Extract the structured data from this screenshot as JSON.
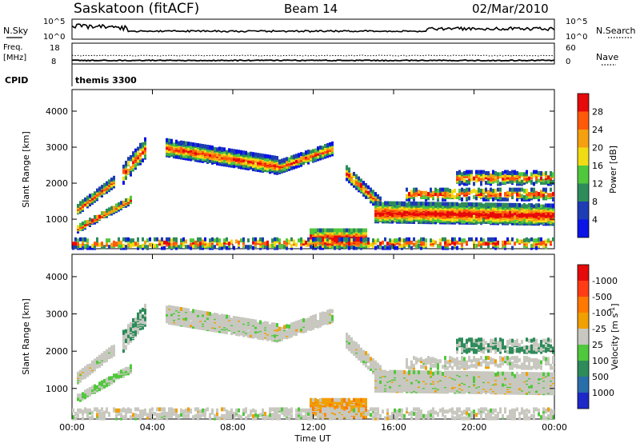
{
  "header": {
    "station": "Saskatoon (fitACF)",
    "beam": "Beam 14",
    "date": "02/Mar/2010"
  },
  "noise_panel": {
    "left_label": "N.Sky",
    "right_label": "N.Search",
    "top_tick": "10^5",
    "bottom_tick": "10^0",
    "right_top_tick": "10^5",
    "right_bottom_tick": "10^0"
  },
  "freq_panel": {
    "left_label_line1": "Freq.",
    "left_label_line2": "[MHz]",
    "top_tick": "18",
    "bottom_tick": "8",
    "right_label": "Nave",
    "right_top_tick": "60",
    "right_bottom_tick": "0"
  },
  "cpid_panel": {
    "label": "CPID",
    "mode": "themis 3300"
  },
  "chart_data": [
    {
      "type": "heatmap",
      "quantity": "Power",
      "ylabel": "Slant Range [km]",
      "xlabel": "Time UT",
      "ylim": [
        180,
        4600
      ],
      "yticks": [
        "1000",
        "2000",
        "3000",
        "4000"
      ],
      "xticks": [
        "00:00",
        "04:00",
        "08:00",
        "12:00",
        "16:00",
        "20:00",
        "00:00"
      ],
      "colorbar": {
        "label": "Power [dB]",
        "ticks": [
          "4",
          "8",
          "12",
          "16",
          "20",
          "24",
          "28"
        ],
        "colors": [
          "#0a14e6",
          "#1e3cb4",
          "#2d8c5a",
          "#50c83c",
          "#f0dc14",
          "#f5a00f",
          "#ff5a0a",
          "#e60a0a"
        ]
      }
    },
    {
      "type": "heatmap",
      "quantity": "Velocity",
      "ylabel": "Slant Range [km]",
      "xlabel": "Time UT",
      "ylim": [
        180,
        4600
      ],
      "yticks": [
        "1000",
        "2000",
        "3000",
        "4000"
      ],
      "xticks": [
        "00:00",
        "04:00",
        "08:00",
        "12:00",
        "16:00",
        "20:00",
        "00:00"
      ],
      "colorbar": {
        "label": "Velocity [m s^-1]",
        "ticks": [
          "1000",
          "500",
          "100",
          "25",
          "-25",
          "-100",
          "-500",
          "-1000"
        ],
        "colors": [
          "#1e28c8",
          "#286eaa",
          "#2d8c5a",
          "#50c83c",
          "#c8c8c0",
          "#f0a000",
          "#ff7800",
          "#ff3c14",
          "#e60a0a"
        ]
      }
    }
  ]
}
